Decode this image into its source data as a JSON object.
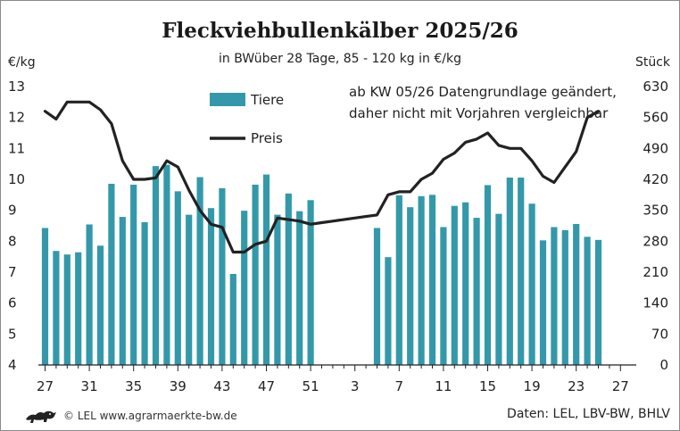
{
  "chart_data": {
    "type": "bar+line",
    "title": "Fleckviehbullenkälber 2025/26",
    "subtitle": "in BWüber 28 Tage, 85 - 120 kg in €/kg",
    "y_left_label": "€/kg",
    "y_right_label": "Stück",
    "y_left_ticks": [
      4,
      5,
      6,
      7,
      8,
      9,
      10,
      11,
      12,
      13
    ],
    "y_right_ticks": [
      0,
      70,
      140,
      210,
      280,
      350,
      420,
      490,
      560,
      630
    ],
    "ylim_left": [
      4,
      13
    ],
    "ylim_right": [
      0,
      630
    ],
    "x_ticks": [
      "27",
      "31",
      "35",
      "39",
      "43",
      "47",
      "51",
      "3",
      "7",
      "11",
      "15",
      "19",
      "23",
      "27"
    ],
    "weeks": [
      "27",
      "28",
      "29",
      "30",
      "31",
      "32",
      "33",
      "34",
      "35",
      "36",
      "37",
      "38",
      "39",
      "40",
      "41",
      "42",
      "43",
      "44",
      "45",
      "46",
      "47",
      "48",
      "49",
      "50",
      "51",
      "52",
      "1",
      "2",
      "3",
      "4",
      "5",
      "6",
      "7",
      "8",
      "9",
      "10",
      "11",
      "12",
      "13",
      "14",
      "15",
      "16",
      "17",
      "18",
      "19",
      "20",
      "21",
      "22",
      "23",
      "24",
      "25",
      "26",
      "27"
    ],
    "series": [
      {
        "name": "Tiere",
        "type": "bar",
        "axis": "right",
        "color": "#3399aa",
        "values": [
          310,
          258,
          250,
          255,
          318,
          270,
          410,
          335,
          408,
          323,
          450,
          453,
          393,
          340,
          425,
          355,
          400,
          206,
          349,
          408,
          431,
          340,
          388,
          348,
          373,
          null,
          null,
          null,
          null,
          null,
          310,
          244,
          384,
          357,
          382,
          385,
          312,
          360,
          368,
          333,
          407,
          342,
          424,
          424,
          365,
          282,
          312,
          305,
          319,
          290,
          283,
          null,
          null
        ]
      },
      {
        "name": "Preis",
        "type": "line",
        "axis": "left",
        "color": "#222222",
        "values": [
          12.2,
          11.95,
          12.5,
          12.5,
          12.5,
          12.25,
          11.8,
          10.6,
          10.0,
          10.0,
          10.05,
          10.6,
          10.4,
          9.65,
          9.0,
          8.55,
          8.45,
          7.65,
          7.65,
          7.9,
          8.0,
          8.75,
          8.7,
          8.65,
          8.55,
          8.6,
          8.65,
          8.7,
          8.75,
          8.8,
          8.85,
          9.5,
          9.6,
          9.6,
          10.0,
          10.2,
          10.65,
          10.85,
          11.2,
          11.3,
          11.5,
          11.1,
          11.0,
          11.0,
          10.6,
          10.1,
          9.9,
          10.4,
          10.9,
          12.0,
          12.2,
          null,
          null
        ]
      }
    ],
    "legend": [
      {
        "name": "Tiere",
        "symbol": "bar"
      },
      {
        "name": "Preis",
        "symbol": "line"
      }
    ],
    "legend_position": "top-left",
    "annotation": [
      "ab KW 05/26 Datengrundlage geändert,",
      "daher nicht mit Vorjahren vergleichbar"
    ],
    "grid": false
  },
  "footer": {
    "logo_icon": "lion-crest-icon",
    "credit": "© LEL www.agrarmaerkte-bw.de",
    "source": "Daten: LEL, LBV-BW, BHLV"
  },
  "colors": {
    "bars": "#3399aa",
    "line": "#222222",
    "axis": "#222222"
  }
}
